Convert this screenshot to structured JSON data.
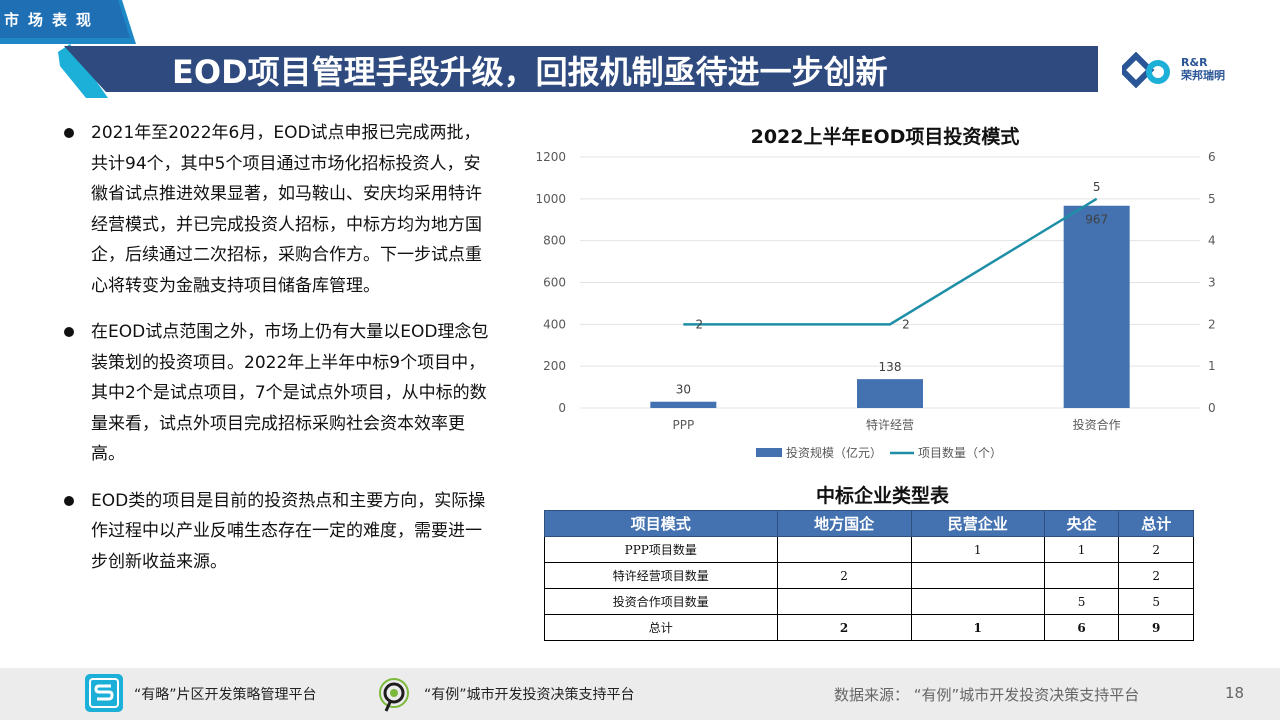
{
  "header": {
    "tag": "市场表现",
    "title": "EOD项目管理手段升级，回报机制亟待进一步创新",
    "logo_text_line1": "R&R",
    "logo_text_line2": "荣邦瑞明"
  },
  "bullets": [
    "2021年至2022年6月，EOD试点申报已完成两批，共计94个，其中5个项目通过市场化招标投资人，安徽省试点推进效果显著，如马鞍山、安庆均采用特许经营模式，并已完成投资人招标，中标方均为地方国企，后续通过二次招标，采购合作方。下一步试点重心将转变为金融支持项目储备库管理。",
    "在EOD试点范围之外，市场上仍有大量以EOD理念包装策划的投资项目。2022年上半年中标9个项目中，其中2个是试点项目，7个是试点外项目，从中标的数量来看，试点外项目完成招标采购社会资本效率更高。",
    "EOD类的项目是目前的投资热点和主要方向，实际操作过程中以产业反哺生态存在一定的难度，需要进一步创新收益来源。"
  ],
  "chart_data": {
    "type": "bar",
    "title": "2022上半年EOD项目投资模式",
    "categories": [
      "PPP",
      "特许经营",
      "投资合作"
    ],
    "series": [
      {
        "name": "投资规模（亿元）",
        "type": "bar",
        "axis": "left",
        "values": [
          30,
          138,
          967
        ],
        "color": "#4472b0"
      },
      {
        "name": "项目数量（个）",
        "type": "line",
        "axis": "right",
        "values": [
          2,
          2,
          5
        ],
        "color": "#1f8fa8"
      }
    ],
    "ylim": [
      0,
      1200
    ],
    "yticks": [
      "0",
      "200",
      "400",
      "600",
      "800",
      "1000",
      "1200"
    ],
    "y2lim": [
      0,
      6
    ],
    "y2ticks": [
      "0",
      "1",
      "2",
      "3",
      "4",
      "5",
      "6"
    ],
    "legend": "bottom",
    "grid": true
  },
  "table": {
    "title": "中标企业类型表",
    "headers": [
      "项目模式",
      "地方国企",
      "民营企业",
      "央企",
      "总计"
    ],
    "rows": [
      [
        "PPP项目数量",
        "",
        "1",
        "1",
        "2"
      ],
      [
        "特许经营项目数量",
        "2",
        "",
        "",
        "2"
      ],
      [
        "投资合作项目数量",
        "",
        "",
        "5",
        "5"
      ],
      [
        "总计",
        "2",
        "1",
        "6",
        "9"
      ]
    ]
  },
  "footer": {
    "platform1": "“有略”片区开发策略管理平台",
    "platform2": "“有例”城市开发投资决策支持平台",
    "source": "数据来源：  “有例”城市开发投资决策支持平台",
    "page": "18"
  },
  "colors": {
    "title_bar": "#2f4a7e",
    "accent_blue": "#1cb0d9",
    "bar": "#4472b0",
    "line": "#1f8fa8"
  }
}
